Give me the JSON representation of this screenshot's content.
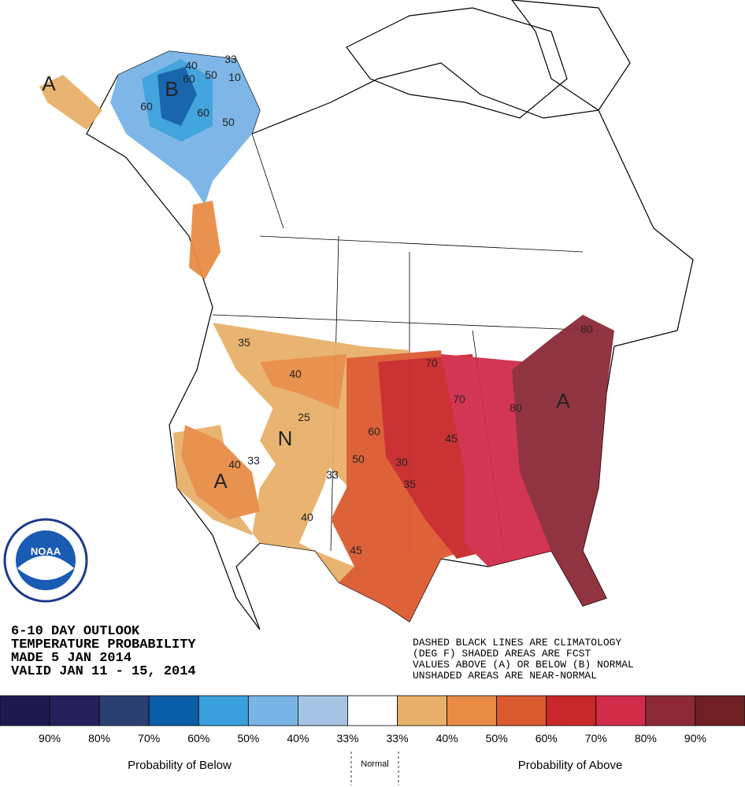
{
  "map": {
    "title_lines": [
      "6-10 DAY OUTLOOK",
      "TEMPERATURE PROBABILITY",
      "MADE  5 JAN 2014",
      "VALID  JAN 11 - 15, 2014"
    ],
    "notes": [
      "DASHED BLACK LINES ARE CLIMATOLOGY",
      "(DEG F) SHADED AREAS ARE FCST",
      "VALUES ABOVE (A) OR BELOW (B) NORMAL",
      "UNSHADED AREAS ARE NEAR-NORMAL"
    ],
    "logo": "NOAA",
    "contour_labels": [
      "B",
      "A",
      "40",
      "33",
      "60",
      "50",
      "10",
      "60",
      "60",
      "50",
      "35",
      "40",
      "25",
      "N",
      "33",
      "40",
      "A",
      "50",
      "33",
      "60",
      "40",
      "45",
      "30",
      "35",
      "45",
      "70",
      "70",
      "80",
      "80",
      "A"
    ]
  },
  "legend": {
    "colors": [
      "#1e1a4f",
      "#261f5e",
      "#2b3f73",
      "#0d5ea8",
      "#3aa0dc",
      "#78b4e6",
      "#a5c4e3",
      "#ffffff",
      "#e8b06a",
      "#e88c45",
      "#dc5a30",
      "#c8282a",
      "#d02c4a",
      "#8c2a38",
      "#6e2024"
    ],
    "ticks": [
      "90%",
      "80%",
      "70%",
      "60%",
      "50%",
      "40%",
      "33%",
      "33%",
      "40%",
      "50%",
      "60%",
      "70%",
      "80%",
      "90%"
    ],
    "below": "Probability of Below",
    "normal": "Normal",
    "above": "Probability of Above"
  }
}
